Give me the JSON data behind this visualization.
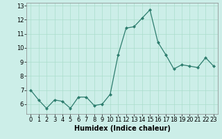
{
  "x": [
    0,
    1,
    2,
    3,
    4,
    5,
    6,
    7,
    8,
    9,
    10,
    11,
    12,
    13,
    14,
    15,
    16,
    17,
    18,
    19,
    20,
    21,
    22,
    23
  ],
  "y": [
    7.0,
    6.3,
    5.7,
    6.3,
    6.2,
    5.7,
    6.5,
    6.5,
    5.9,
    6.0,
    6.7,
    9.5,
    11.4,
    11.5,
    12.1,
    12.7,
    10.4,
    9.5,
    8.5,
    8.8,
    8.7,
    8.6,
    9.3,
    8.7
  ],
  "xlabel": "Humidex (Indice chaleur)",
  "xlim": [
    -0.5,
    23.5
  ],
  "ylim": [
    5.3,
    13.2
  ],
  "yticks": [
    6,
    7,
    8,
    9,
    10,
    11,
    12,
    13
  ],
  "xticks": [
    0,
    1,
    2,
    3,
    4,
    5,
    6,
    7,
    8,
    9,
    10,
    11,
    12,
    13,
    14,
    15,
    16,
    17,
    18,
    19,
    20,
    21,
    22,
    23
  ],
  "line_color": "#2e7d6e",
  "marker": "D",
  "marker_size": 2.0,
  "bg_color": "#cceee8",
  "grid_color": "#aaddcc",
  "label_fontsize": 7,
  "tick_fontsize": 6
}
